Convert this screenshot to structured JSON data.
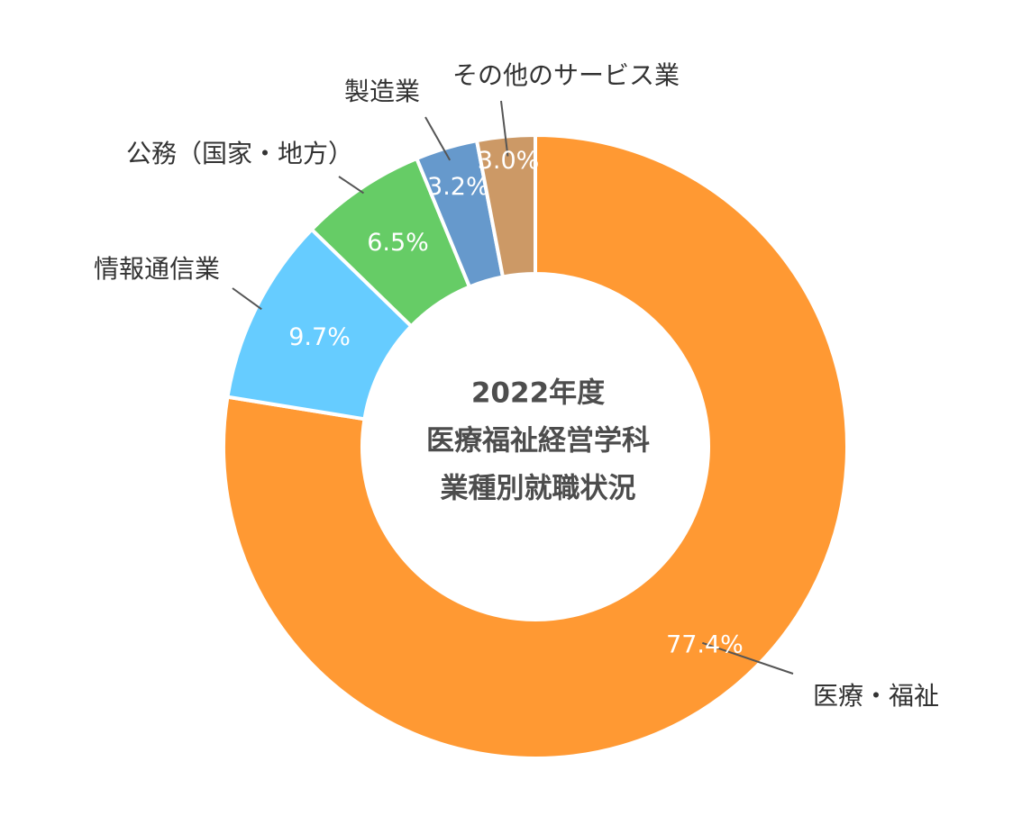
{
  "chart_data": {
    "type": "pie",
    "donut": true,
    "title_lines": [
      "2022年度",
      "医療福祉経営学科",
      "業種別就職状況"
    ],
    "series": [
      {
        "name": "医療・福祉",
        "value": 77.4,
        "label": "77.4%",
        "color": "#FF9933"
      },
      {
        "name": "情報通信業",
        "value": 9.7,
        "label": "9.7%",
        "color": "#66CCFF"
      },
      {
        "name": "公務（国家・地方）",
        "value": 6.5,
        "label": "6.5%",
        "color": "#66CC66"
      },
      {
        "name": "製造業",
        "value": 3.2,
        "label": "3.2%",
        "color": "#6699CC"
      },
      {
        "name": "その他のサービス業",
        "value": 3.0,
        "label": "3.0%",
        "color": "#CC9966"
      }
    ],
    "start": "12 o'clock",
    "direction": "clockwise",
    "legend": "none"
  }
}
